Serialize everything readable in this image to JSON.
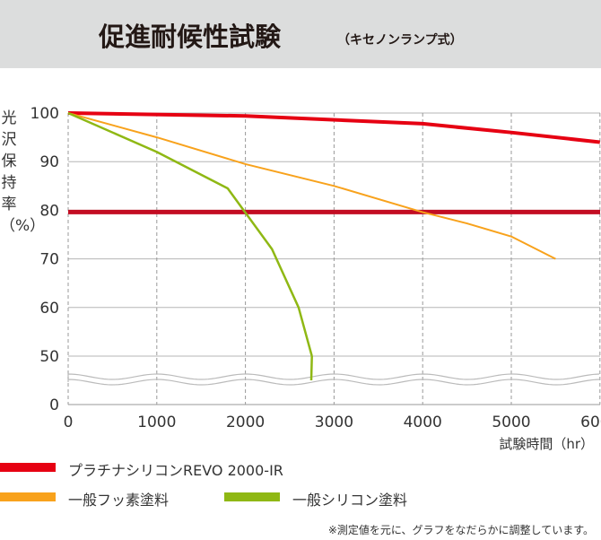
{
  "header": {
    "title": "促進耐候性試験",
    "subtitle": "（キセノンランプ式）"
  },
  "note": "※測定値を元に、グラフをなだらかに調整しています。",
  "chart_data": {
    "type": "line",
    "ylabel": "光沢保持率（%）",
    "xlabel": "試験時間（hr）",
    "xlim": [
      0,
      6000
    ],
    "ylim": [
      0,
      100
    ],
    "axis_break": "between 0 and 50",
    "x_ticks": [
      "0",
      "1000",
      "2000",
      "3000",
      "4000",
      "5000",
      "6000"
    ],
    "y_ticks": [
      "100",
      "90",
      "80",
      "70",
      "60",
      "50",
      "0"
    ],
    "grid": true,
    "reference_line": {
      "y": 80,
      "color": "#c30d23"
    },
    "legend_position": "bottom",
    "series": [
      {
        "name": "プラチナシリコンREVO 2000-IR",
        "color": "#e60012",
        "x": [
          0,
          2000,
          4000,
          5000,
          6000
        ],
        "y": [
          100,
          99.4,
          97.8,
          96,
          94
        ]
      },
      {
        "name": "一般フッ素塗料",
        "color": "#f8a21c",
        "x": [
          0,
          1000,
          2000,
          3000,
          4000,
          4500,
          5000,
          5500
        ],
        "y": [
          100,
          95,
          89.5,
          85,
          79.6,
          77.3,
          74.6,
          70
        ]
      },
      {
        "name": "一般シリコン塗料",
        "color": "#8fb814",
        "x": [
          0,
          1000,
          1800,
          2000,
          2300,
          2600,
          2750
        ],
        "y": [
          100,
          92,
          84.5,
          79.5,
          72,
          60,
          50
        ]
      }
    ]
  }
}
